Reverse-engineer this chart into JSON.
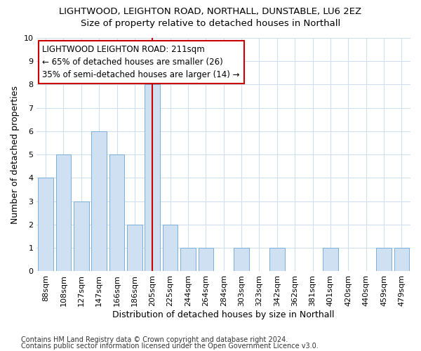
{
  "title": "LIGHTWOOD, LEIGHTON ROAD, NORTHALL, DUNSTABLE, LU6 2EZ",
  "subtitle": "Size of property relative to detached houses in Northall",
  "xlabel": "Distribution of detached houses by size in Northall",
  "ylabel": "Number of detached properties",
  "categories": [
    "88sqm",
    "108sqm",
    "127sqm",
    "147sqm",
    "166sqm",
    "186sqm",
    "205sqm",
    "225sqm",
    "244sqm",
    "264sqm",
    "284sqm",
    "303sqm",
    "323sqm",
    "342sqm",
    "362sqm",
    "381sqm",
    "401sqm",
    "420sqm",
    "440sqm",
    "459sqm",
    "479sqm"
  ],
  "values": [
    4,
    5,
    3,
    6,
    5,
    2,
    8,
    2,
    1,
    1,
    0,
    1,
    0,
    1,
    0,
    0,
    1,
    0,
    0,
    1,
    1
  ],
  "bar_color": "#cfe0f3",
  "bar_edge_color": "#7aafd4",
  "highlight_index": 6,
  "highlight_line_color": "#cc0000",
  "annotation_text": "LIGHTWOOD LEIGHTON ROAD: 211sqm\n← 65% of detached houses are smaller (26)\n35% of semi-detached houses are larger (14) →",
  "annotation_box_color": "#ffffff",
  "annotation_box_edge_color": "#cc0000",
  "ylim": [
    0,
    10
  ],
  "yticks": [
    0,
    1,
    2,
    3,
    4,
    5,
    6,
    7,
    8,
    9,
    10
  ],
  "footer1": "Contains HM Land Registry data © Crown copyright and database right 2024.",
  "footer2": "Contains public sector information licensed under the Open Government Licence v3.0.",
  "fig_background_color": "#ffffff",
  "plot_background_color": "#ffffff",
  "grid_color": "#d0dff0",
  "title_fontsize": 9.5,
  "subtitle_fontsize": 9.5,
  "axis_label_fontsize": 9,
  "tick_fontsize": 8,
  "footer_fontsize": 7,
  "annot_fontsize": 8.5
}
